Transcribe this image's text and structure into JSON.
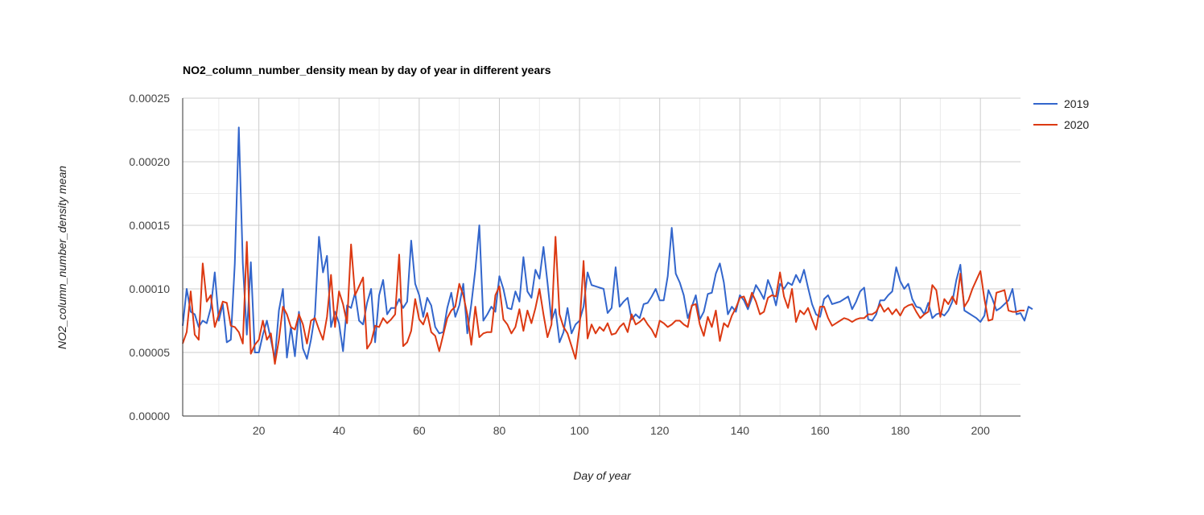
{
  "chart_data": {
    "type": "line",
    "title": "NO2_column_number_density mean by day of year in different years",
    "xlabel": "Day of year",
    "ylabel": "NO2_column_number_density mean",
    "xlim": [
      1,
      210
    ],
    "ylim": [
      0,
      0.00025
    ],
    "x_ticks": [
      "20",
      "40",
      "60",
      "80",
      "100",
      "120",
      "140",
      "160",
      "180",
      "200"
    ],
    "x_tick_values": [
      20,
      40,
      60,
      80,
      100,
      120,
      140,
      160,
      180,
      200
    ],
    "y_ticks": [
      "0.00000",
      "0.00005",
      "0.00010",
      "0.00015",
      "0.00020",
      "0.00025"
    ],
    "y_tick_values": [
      0,
      5e-05,
      0.0001,
      0.00015,
      0.0002,
      0.00025
    ],
    "grid": true,
    "legend_position": "right",
    "x_start": 1,
    "series": [
      {
        "name": "2019",
        "color": "#3366cc",
        "values": [
          7.1e-05,
          0.0001,
          8.2e-05,
          8e-05,
          7e-05,
          7.5e-05,
          7.3e-05,
          8.5e-05,
          0.000113,
          7.5e-05,
          8.8e-05,
          5.8e-05,
          6e-05,
          0.00012,
          0.000227,
          0.00012,
          6.4e-05,
          0.000121,
          5e-05,
          5e-05,
          6.4e-05,
          7.5e-05,
          6e-05,
          4.5e-05,
          8.3e-05,
          0.0001,
          4.6e-05,
          7e-05,
          4.7e-05,
          8.2e-05,
          5.3e-05,
          4.5e-05,
          6e-05,
          8e-05,
          0.000141,
          0.000113,
          0.000126,
          7e-05,
          8.2e-05,
          7.3e-05,
          5.1e-05,
          8.7e-05,
          8.5e-05,
          9.7e-05,
          7.5e-05,
          7.2e-05,
          8.9e-05,
          0.0001,
          5.8e-05,
          9.5e-05,
          0.000107,
          8e-05,
          8.5e-05,
          8.5e-05,
          9.2e-05,
          8.5e-05,
          9e-05,
          0.000138,
          0.000104,
          9.5e-05,
          7.8e-05,
          9.3e-05,
          8.7e-05,
          7e-05,
          6.5e-05,
          6.6e-05,
          8.5e-05,
          9.7e-05,
          7.8e-05,
          8.7e-05,
          0.000104,
          6.5e-05,
          8.8e-05,
          0.000115,
          0.00015,
          7.5e-05,
          8e-05,
          8.6e-05,
          8.2e-05,
          0.00011,
          0.0001,
          8.5e-05,
          8.4e-05,
          9.8e-05,
          9e-05,
          0.000125,
          9.8e-05,
          9.3e-05,
          0.000115,
          0.000108,
          0.000133,
          0.000105,
          7.5e-05,
          8.4e-05,
          5.8e-05,
          6.6e-05,
          8.5e-05,
          6.5e-05,
          7.2e-05,
          7.5e-05,
          8.6e-05,
          0.000113,
          0.000103,
          0.000102,
          0.000101,
          0.0001,
          8.1e-05,
          8.5e-05,
          0.000117,
          8.6e-05,
          9e-05,
          9.3e-05,
          7.6e-05,
          8e-05,
          7.7e-05,
          8.8e-05,
          8.9e-05,
          9.4e-05,
          0.0001,
          9.1e-05,
          9.1e-05,
          0.00011,
          0.000148,
          0.000112,
          0.000105,
          9.5e-05,
          7.7e-05,
          8.6e-05,
          9.5e-05,
          7.6e-05,
          8.2e-05,
          9.6e-05,
          9.7e-05,
          0.000112,
          0.00012,
          0.000105,
          8e-05,
          8.6e-05,
          8.2e-05,
          9.5e-05,
          9.1e-05,
          8.4e-05,
          9.3e-05,
          0.000103,
          9.8e-05,
          9.2e-05,
          0.000107,
          9.9e-05,
          8.7e-05,
          0.000104,
          0.0001,
          0.000105,
          0.000103,
          0.000111,
          0.000105,
          0.000115,
          0.000101,
          8.8e-05,
          8e-05,
          7.8e-05,
          9.2e-05,
          9.5e-05,
          8.8e-05,
          8.9e-05,
          9e-05,
          9.2e-05,
          9.4e-05,
          8.4e-05,
          9e-05,
          9.8e-05,
          0.000101,
          7.6e-05,
          7.5e-05,
          8e-05,
          9.1e-05,
          9.1e-05,
          9.5e-05,
          9.8e-05,
          0.000117,
          0.000106,
          0.0001,
          0.000104,
          9.2e-05,
          8.6e-05,
          8.5e-05,
          8e-05,
          8.9e-05,
          7.7e-05,
          8e-05,
          8.1e-05,
          7.9e-05,
          8.3e-05,
          9e-05,
          0.000107,
          0.000119,
          8.3e-05,
          8.1e-05,
          7.9e-05,
          7.7e-05,
          7.4e-05,
          7.9e-05,
          9.9e-05,
          9.2e-05,
          8.3e-05,
          8.5e-05,
          8.8e-05,
          9.1e-05,
          0.0001,
          8e-05,
          8.1e-05,
          7.5e-05,
          8.6e-05,
          8.4e-05
        ]
      },
      {
        "name": "2020",
        "color": "#dc3912",
        "values": [
          5.7e-05,
          6.6e-05,
          9.8e-05,
          6.4e-05,
          6e-05,
          0.00012,
          9e-05,
          9.5e-05,
          7e-05,
          8e-05,
          9e-05,
          8.9e-05,
          7.1e-05,
          7e-05,
          6.6e-05,
          5.7e-05,
          0.000137,
          4.9e-05,
          5.6e-05,
          6e-05,
          7.5e-05,
          6e-05,
          6.5e-05,
          4.1e-05,
          6e-05,
          8.6e-05,
          8e-05,
          7e-05,
          6.8e-05,
          8e-05,
          7.2e-05,
          5.7e-05,
          7.5e-05,
          7.7e-05,
          6.8e-05,
          6e-05,
          7.8e-05,
          0.000111,
          7e-05,
          9.8e-05,
          8.8e-05,
          7.3e-05,
          0.000135,
          9.5e-05,
          0.000102,
          0.000109,
          5.3e-05,
          5.8e-05,
          7.1e-05,
          7e-05,
          7.7e-05,
          7.3e-05,
          7.6e-05,
          8e-05,
          0.000127,
          5.5e-05,
          5.8e-05,
          6.7e-05,
          9.2e-05,
          7.6e-05,
          7.2e-05,
          8.1e-05,
          6.6e-05,
          6.3e-05,
          5.1e-05,
          6.4e-05,
          7.7e-05,
          8.3e-05,
          8.6e-05,
          0.000104,
          9.5e-05,
          8e-05,
          5.6e-05,
          8.6e-05,
          6.2e-05,
          6.5e-05,
          6.6e-05,
          6.6e-05,
          9.5e-05,
          0.000102,
          7.6e-05,
          7.2e-05,
          6.5e-05,
          7e-05,
          8.4e-05,
          6.7e-05,
          8.3e-05,
          7.3e-05,
          8.5e-05,
          0.0001,
          8e-05,
          6.2e-05,
          7.2e-05,
          0.000141,
          8e-05,
          7e-05,
          6.5e-05,
          5.5e-05,
          4.5e-05,
          7e-05,
          0.000122,
          6.1e-05,
          7.2e-05,
          6.5e-05,
          7e-05,
          6.7e-05,
          7.3e-05,
          6.4e-05,
          6.5e-05,
          7e-05,
          7.3e-05,
          6.6e-05,
          8e-05,
          7.2e-05,
          7.4e-05,
          7.7e-05,
          7.2e-05,
          6.8e-05,
          6.2e-05,
          7.5e-05,
          7.3e-05,
          7e-05,
          7.2e-05,
          7.5e-05,
          7.5e-05,
          7.2e-05,
          7e-05,
          8.7e-05,
          8.8e-05,
          7.2e-05,
          6.3e-05,
          7.8e-05,
          7e-05,
          8.3e-05,
          5.9e-05,
          7.3e-05,
          7e-05,
          7.9e-05,
          8.5e-05,
          9.3e-05,
          9.4e-05,
          8.6e-05,
          9.7e-05,
          9e-05,
          8e-05,
          8.2e-05,
          9.3e-05,
          9.5e-05,
          9.4e-05,
          0.000113,
          9.4e-05,
          8.5e-05,
          0.0001,
          7.4e-05,
          8.3e-05,
          8e-05,
          8.5e-05,
          7.6e-05,
          6.8e-05,
          8.6e-05,
          8.6e-05,
          7.7e-05,
          7.1e-05,
          7.3e-05,
          7.5e-05,
          7.7e-05,
          7.6e-05,
          7.4e-05,
          7.6e-05,
          7.7e-05,
          7.7e-05,
          8e-05,
          8e-05,
          8.2e-05,
          8.8e-05,
          8.2e-05,
          8.5e-05,
          8e-05,
          8.4e-05,
          7.9e-05,
          8.5e-05,
          8.7e-05,
          8.8e-05,
          8.2e-05,
          7.7e-05,
          8e-05,
          8.2e-05,
          0.000103,
          9.9e-05,
          7.8e-05,
          9.2e-05,
          8.8e-05,
          9.4e-05,
          8.8e-05,
          0.000112,
          8.6e-05,
          9.1e-05,
          0.0001,
          0.000107,
          0.000114,
          9.2e-05,
          7.5e-05,
          7.6e-05,
          9.7e-05,
          9.8e-05,
          9.9e-05,
          8.3e-05,
          8.2e-05,
          8.2e-05,
          8.3e-05,
          8.3e-05
        ]
      }
    ]
  }
}
